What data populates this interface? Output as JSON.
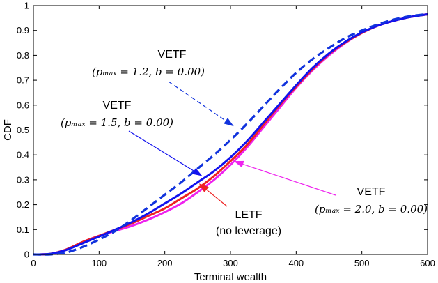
{
  "chart_data": {
    "type": "line",
    "title": "",
    "xlabel": "Terminal wealth",
    "ylabel": "CDF",
    "xlim": [
      0,
      600
    ],
    "ylim": [
      0,
      1
    ],
    "x_ticks": [
      "0",
      "100",
      "200",
      "300",
      "400",
      "500",
      "600"
    ],
    "y_ticks": [
      "0",
      "0.1",
      "0.2",
      "0.3",
      "0.4",
      "0.5",
      "0.6",
      "0.7",
      "0.8",
      "0.9",
      "1"
    ],
    "grid": false,
    "series": [
      {
        "name": "VETF (p_max = 2.0, b = 0.00)",
        "color": "#ee22ee",
        "style": "solid",
        "x": [
          0,
          25,
          50,
          75,
          100,
          125,
          150,
          175,
          200,
          225,
          250,
          275,
          300,
          325,
          350,
          375,
          400,
          425,
          450,
          475,
          500,
          525,
          550,
          575,
          600
        ],
        "y": [
          0,
          0.002,
          0.02,
          0.05,
          0.075,
          0.095,
          0.115,
          0.14,
          0.17,
          0.205,
          0.25,
          0.3,
          0.36,
          0.43,
          0.51,
          0.59,
          0.67,
          0.74,
          0.8,
          0.85,
          0.89,
          0.92,
          0.94,
          0.955,
          0.965
        ]
      },
      {
        "name": "LETF (no leverage)",
        "color": "#ee2222",
        "style": "solid",
        "x": [
          0,
          25,
          50,
          75,
          100,
          125,
          150,
          175,
          200,
          225,
          250,
          275,
          300,
          325,
          350,
          375,
          400,
          425,
          450,
          475,
          500,
          525,
          550,
          575,
          600
        ],
        "y": [
          0,
          0.002,
          0.02,
          0.05,
          0.075,
          0.1,
          0.125,
          0.155,
          0.185,
          0.225,
          0.265,
          0.315,
          0.375,
          0.44,
          0.52,
          0.6,
          0.675,
          0.745,
          0.805,
          0.852,
          0.89,
          0.92,
          0.94,
          0.955,
          0.965
        ]
      },
      {
        "name": "VETF (p_max = 1.5, b = 0.00)",
        "color": "#1111ee",
        "style": "solid",
        "x": [
          0,
          25,
          50,
          75,
          100,
          125,
          150,
          175,
          200,
          225,
          250,
          275,
          300,
          325,
          350,
          375,
          400,
          425,
          450,
          475,
          500,
          525,
          550,
          575,
          600
        ],
        "y": [
          0,
          0.002,
          0.018,
          0.045,
          0.072,
          0.1,
          0.13,
          0.165,
          0.205,
          0.245,
          0.29,
          0.335,
          0.39,
          0.455,
          0.53,
          0.605,
          0.68,
          0.75,
          0.808,
          0.855,
          0.892,
          0.92,
          0.94,
          0.955,
          0.965
        ]
      },
      {
        "name": "VETF (p_max = 1.2, b = 0.00)",
        "color": "#1133dd",
        "style": "dashed",
        "x": [
          0,
          25,
          50,
          75,
          100,
          125,
          150,
          175,
          200,
          225,
          250,
          275,
          300,
          325,
          350,
          375,
          400,
          425,
          450,
          475,
          500,
          525,
          550,
          575,
          600
        ],
        "y": [
          0,
          0.0,
          0.008,
          0.03,
          0.06,
          0.095,
          0.14,
          0.19,
          0.24,
          0.29,
          0.345,
          0.4,
          0.46,
          0.525,
          0.595,
          0.665,
          0.73,
          0.785,
          0.83,
          0.87,
          0.9,
          0.925,
          0.945,
          0.958,
          0.966
        ]
      }
    ],
    "annotations": [
      {
        "id": "pmax12",
        "title": "VETF",
        "param": "(pₘₐₓ = 1.2, b = 0.00)",
        "color": "#1133dd",
        "arrow_style": "dashed",
        "target_x": 305,
        "target_y": 0.515
      },
      {
        "id": "pmax15",
        "title": "VETF",
        "param": "(pₘₐₓ = 1.5, b = 0.00)",
        "color": "#1111ee",
        "arrow_style": "solid",
        "target_x": 257,
        "target_y": 0.315
      },
      {
        "id": "letf",
        "title": "LETF",
        "param": "(no leverage)",
        "color": "#ee2222",
        "arrow_style": "solid",
        "target_x": 252,
        "target_y": 0.285
      },
      {
        "id": "pmax20",
        "title": "VETF",
        "param": "(pₘₐₓ = 2.0, b = 0.00)",
        "color": "#ee22ee",
        "arrow_style": "solid",
        "target_x": 305,
        "target_y": 0.375
      }
    ]
  }
}
